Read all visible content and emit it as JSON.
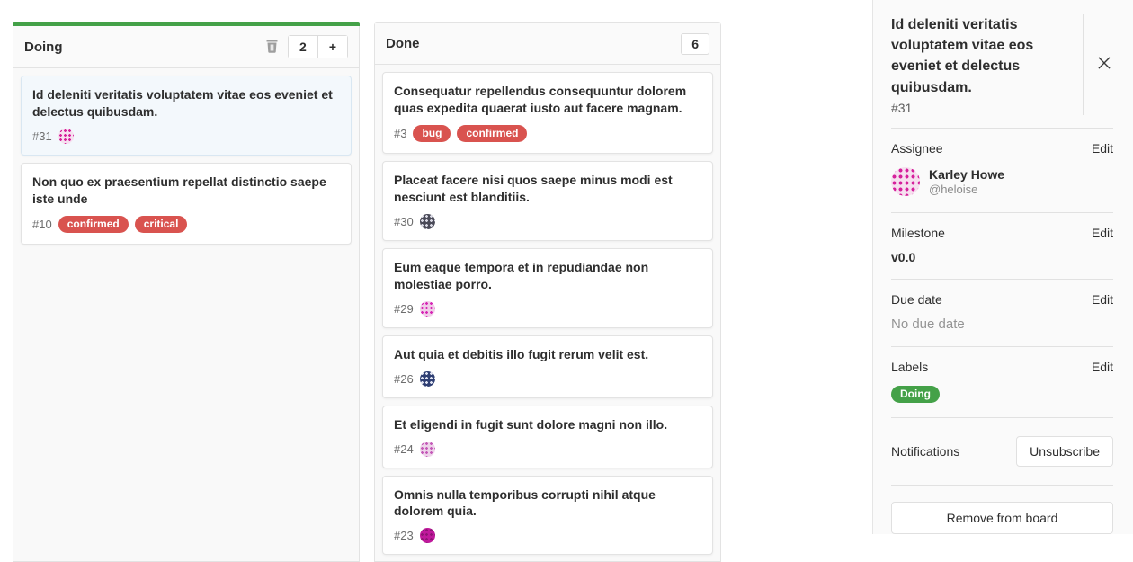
{
  "colors": {
    "green": "#44a148",
    "red": "#d9534f"
  },
  "board": {
    "columns": [
      {
        "title": "Doing",
        "count": "2",
        "accent_color": "#44a148",
        "show_delete": true,
        "show_add": true,
        "cards": [
          {
            "title": "Id deleniti veritatis voluptatem vitae eos eveniet et delectus quibusdam.",
            "number": "#31",
            "labels": [],
            "avatar": {
              "bg": "#f6e0ef",
              "dot": "#d6219c"
            },
            "selected": true
          },
          {
            "title": "Non quo ex praesentium repellat distinctio saepe iste unde",
            "number": "#10",
            "labels": [
              {
                "text": "confirmed",
                "color": "#d9534f"
              },
              {
                "text": "critical",
                "color": "#d9534f"
              }
            ],
            "avatar": null,
            "selected": false
          }
        ]
      },
      {
        "title": "Done",
        "count": "6",
        "accent_color": null,
        "show_delete": false,
        "show_add": false,
        "cards": [
          {
            "title": "Consequatur repellendus consequuntur dolorem quas expedita quaerat iusto aut facere magnam.",
            "number": "#3",
            "labels": [
              {
                "text": "bug",
                "color": "#d9534f"
              },
              {
                "text": "confirmed",
                "color": "#d9534f"
              }
            ],
            "avatar": null,
            "selected": false
          },
          {
            "title": "Placeat facere nisi quos saepe minus modi est nesciunt est blanditiis.",
            "number": "#30",
            "labels": [],
            "avatar": {
              "bg": "#4a4a58",
              "dot": "#d9d9e4"
            },
            "selected": false
          },
          {
            "title": "Eum eaque tempora et in repudiandae non molestiae porro.",
            "number": "#29",
            "labels": [],
            "avatar": {
              "bg": "#f0cde8",
              "dot": "#d626b5"
            },
            "selected": false
          },
          {
            "title": "Aut quia et debitis illo fugit rerum velit est.",
            "number": "#26",
            "labels": [],
            "avatar": {
              "bg": "#2f3f73",
              "dot": "#dfe3f2"
            },
            "selected": false
          },
          {
            "title": "Et eligendi in fugit sunt dolore magni non illo.",
            "number": "#24",
            "labels": [],
            "avatar": {
              "bg": "#eed3ea",
              "dot": "#c45ab8"
            },
            "selected": false
          },
          {
            "title": "Omnis nulla temporibus corrupti nihil atque dolorem quia.",
            "number": "#23",
            "labels": [],
            "avatar": {
              "bg": "#c0199c",
              "dot": "#911277"
            },
            "selected": false
          }
        ]
      }
    ]
  },
  "sidebar": {
    "title": "Id deleniti veritatis voluptatem vitae eos eveniet et delectus quibusdam.",
    "number": "#31",
    "assignee": {
      "label": "Assignee",
      "edit": "Edit",
      "name": "Karley Howe",
      "username": "@heloise",
      "avatar": {
        "bg": "#f6e0ef",
        "dot": "#d6219c"
      }
    },
    "milestone": {
      "label": "Milestone",
      "edit": "Edit",
      "value": "v0.0"
    },
    "due_date": {
      "label": "Due date",
      "edit": "Edit",
      "value": "No due date"
    },
    "labels": {
      "label": "Labels",
      "edit": "Edit",
      "items": [
        {
          "text": "Doing",
          "color": "#44a148"
        }
      ]
    },
    "notifications": {
      "label": "Notifications",
      "button": "Unsubscribe"
    },
    "remove_button": "Remove from board"
  }
}
